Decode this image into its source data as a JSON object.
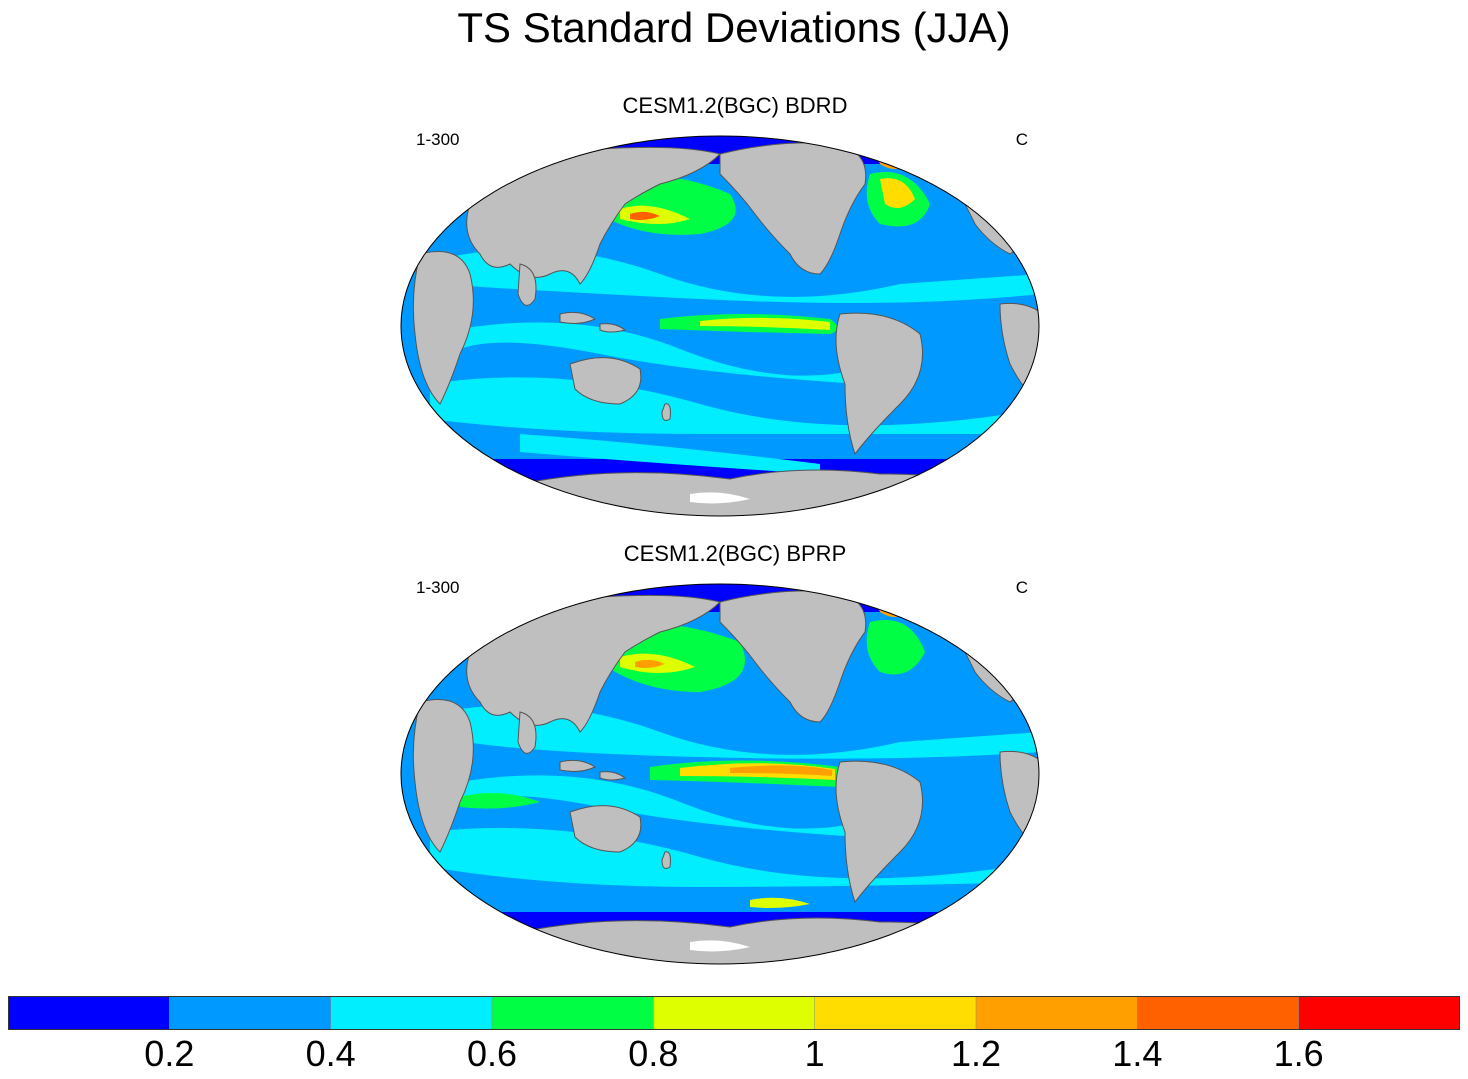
{
  "title": "TS Standard Deviations (JJA)",
  "panels": [
    {
      "title": "CESM1.2(BGC) BDRD",
      "left_label": "1-300",
      "right_label": "C"
    },
    {
      "title": "CESM1.2(BGC) BPRP",
      "left_label": "1-300",
      "right_label": "C"
    }
  ],
  "colorbar": {
    "colors": [
      "#0000ff",
      "#0099ff",
      "#00eeff",
      "#00ff44",
      "#ddff00",
      "#ffdd00",
      "#ffa000",
      "#ff6000",
      "#ff0000"
    ],
    "labels": [
      "0.2",
      "0.4",
      "0.6",
      "0.8",
      "1",
      "1.2",
      "1.4",
      "1.6"
    ]
  },
  "map": {
    "projection": "Robinson",
    "land_color": "#bfbfbf",
    "ocean_base_color": "#0099ff"
  }
}
